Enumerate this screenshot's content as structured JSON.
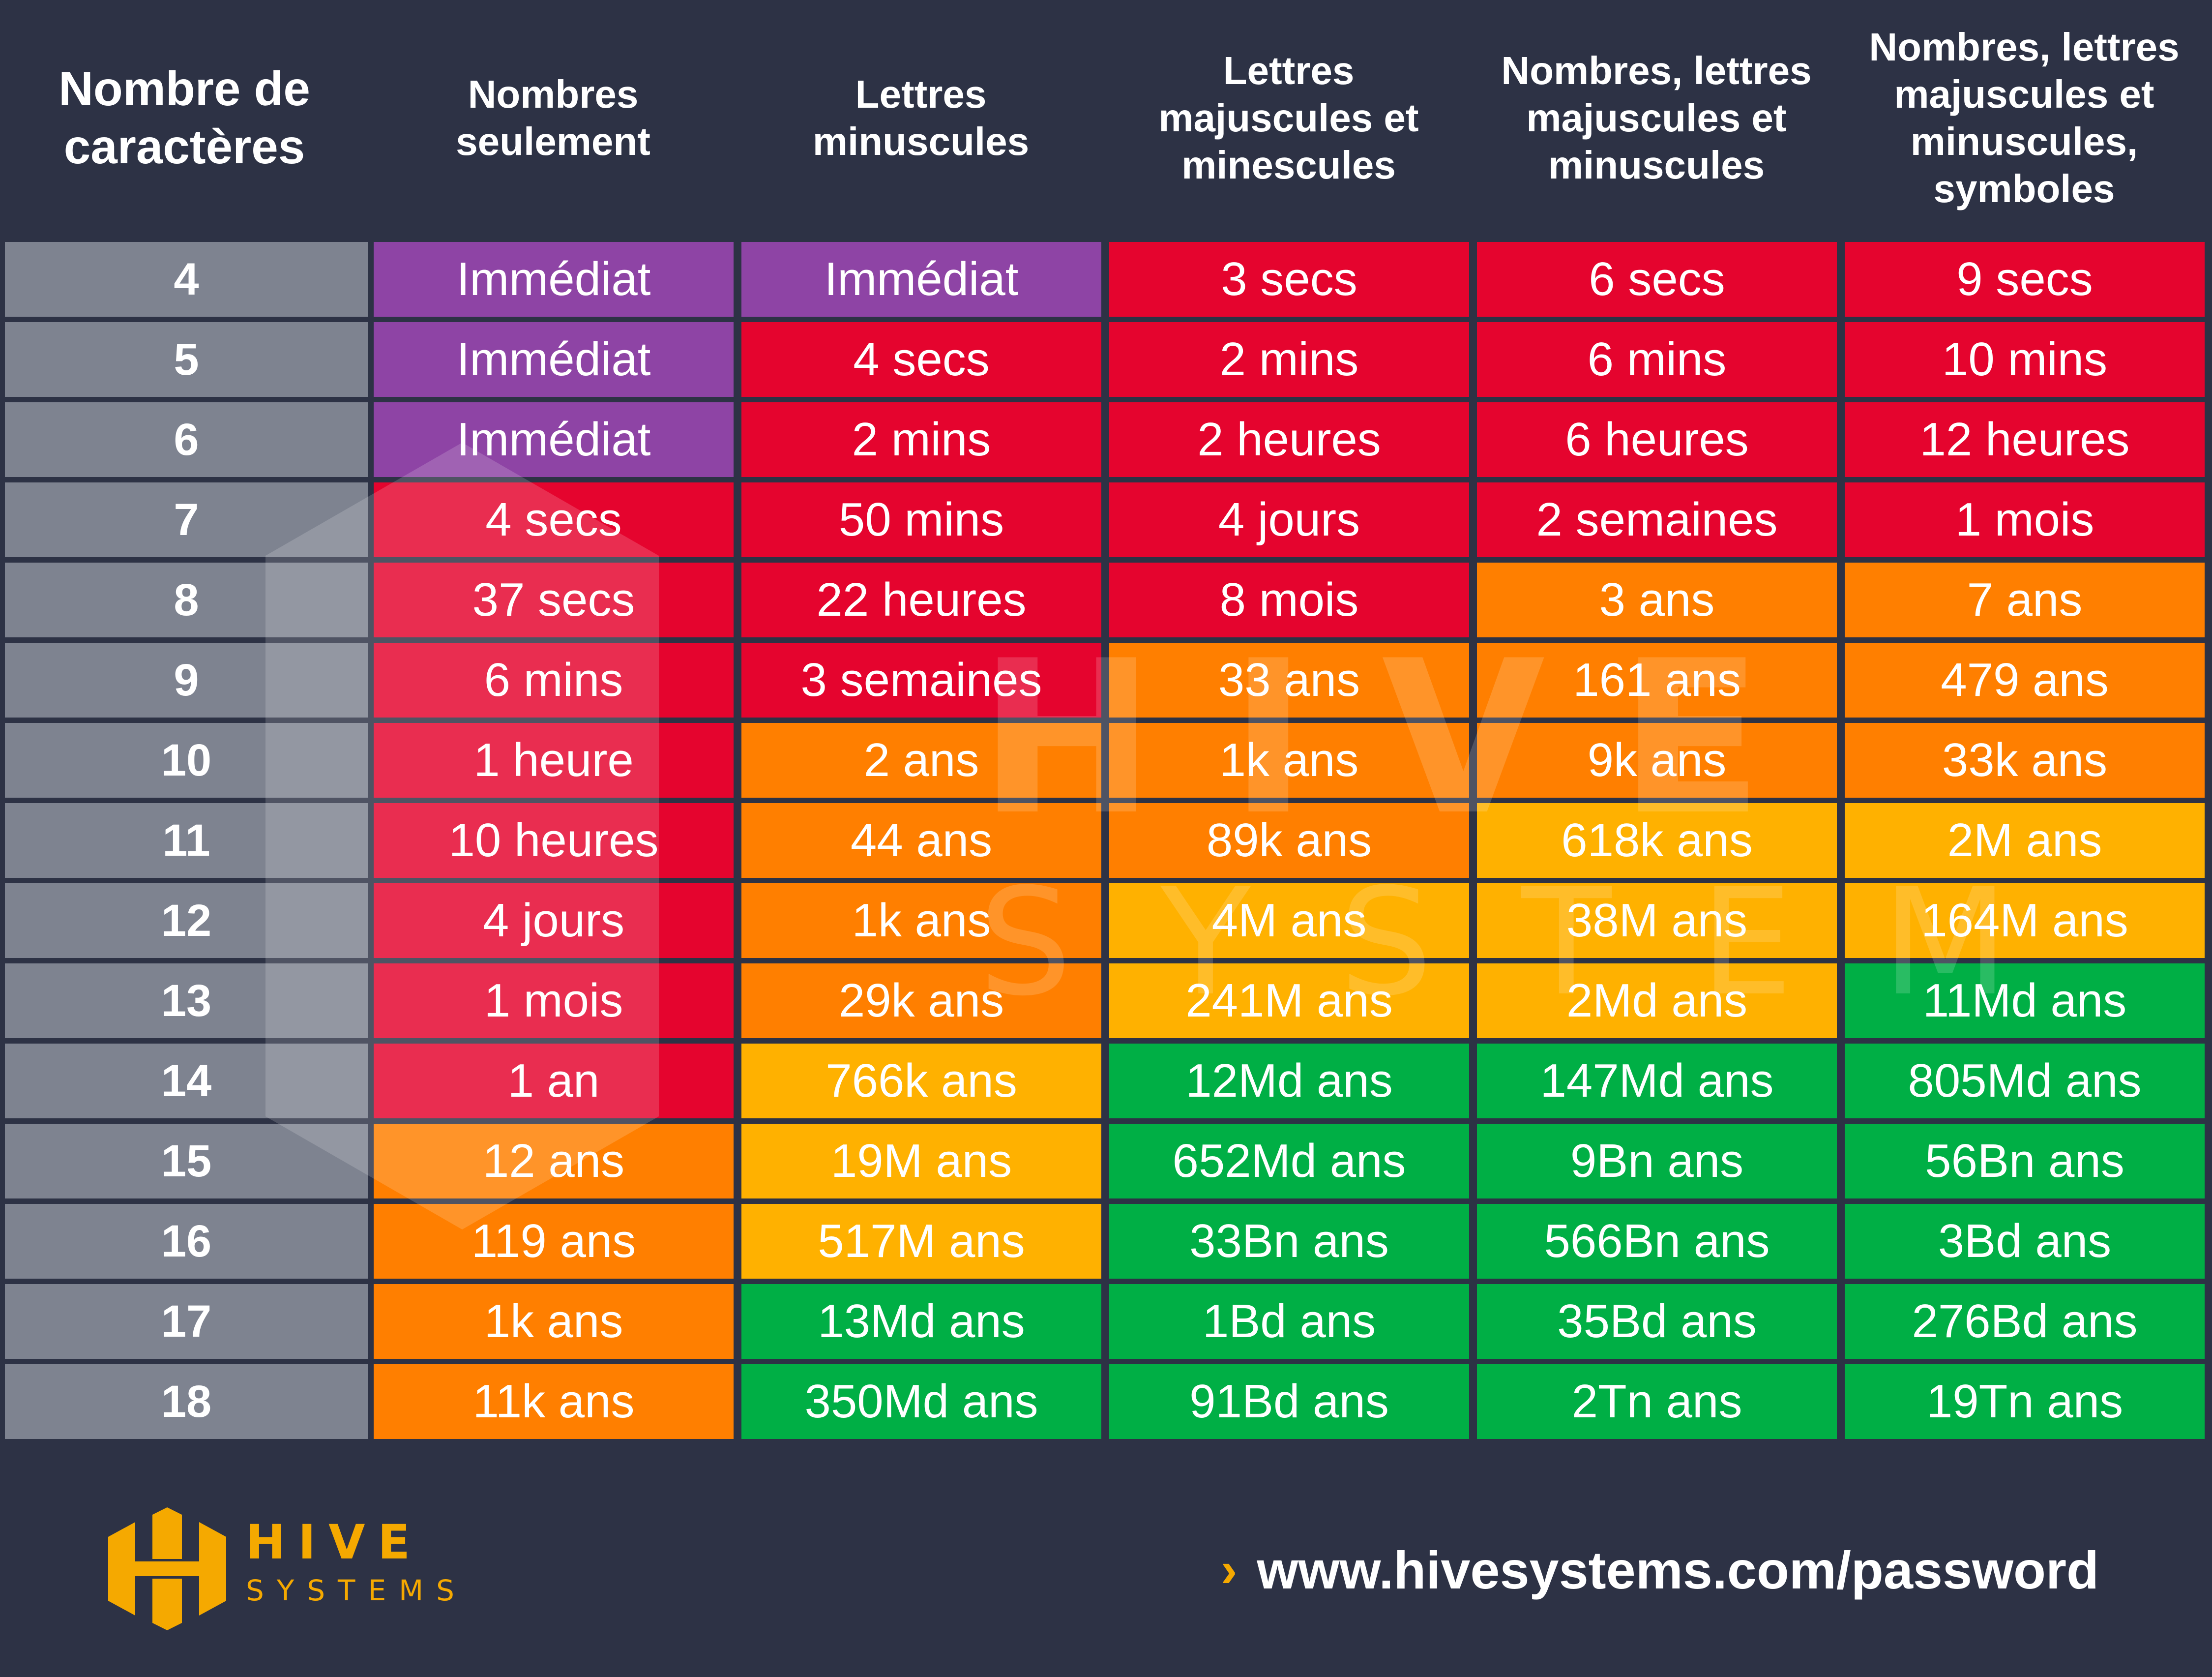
{
  "header": {
    "first": "Nombre de\ncaractères",
    "columns": [
      "Nombres\nseulement",
      "Lettres\nminuscules",
      "Lettres\nmajuscules et\nminescules",
      "Nombres, lettres\nmajuscules et\nminuscules",
      "Nombres, lettres\nmajuscules et\nminuscules,\nsymboles"
    ]
  },
  "colors": {
    "purple": "#8e44a5",
    "red": "#e5042e",
    "orange": "#ff7f00",
    "yellow": "#ffb100",
    "green": "#00af45",
    "label": "#7e8390",
    "background": "#2d3245",
    "brand": "#f5a900"
  },
  "rows": [
    {
      "label": "4",
      "cells": [
        [
          "Immédiat",
          "purple"
        ],
        [
          "Immédiat",
          "purple"
        ],
        [
          "3 secs",
          "red"
        ],
        [
          "6 secs",
          "red"
        ],
        [
          "9 secs",
          "red"
        ]
      ]
    },
    {
      "label": "5",
      "cells": [
        [
          "Immédiat",
          "purple"
        ],
        [
          "4 secs",
          "red"
        ],
        [
          "2 mins",
          "red"
        ],
        [
          "6 mins",
          "red"
        ],
        [
          "10 mins",
          "red"
        ]
      ]
    },
    {
      "label": "6",
      "cells": [
        [
          "Immédiat",
          "purple"
        ],
        [
          "2 mins",
          "red"
        ],
        [
          "2 heures",
          "red"
        ],
        [
          "6 heures",
          "red"
        ],
        [
          "12 heures",
          "red"
        ]
      ]
    },
    {
      "label": "7",
      "cells": [
        [
          "4 secs",
          "red"
        ],
        [
          "50 mins",
          "red"
        ],
        [
          "4 jours",
          "red"
        ],
        [
          "2 semaines",
          "red"
        ],
        [
          "1 mois",
          "red"
        ]
      ]
    },
    {
      "label": "8",
      "cells": [
        [
          "37 secs",
          "red"
        ],
        [
          "22 heures",
          "red"
        ],
        [
          "8 mois",
          "red"
        ],
        [
          "3 ans",
          "orange"
        ],
        [
          "7 ans",
          "orange"
        ]
      ]
    },
    {
      "label": "9",
      "cells": [
        [
          "6 mins",
          "red"
        ],
        [
          "3 semaines",
          "red"
        ],
        [
          "33 ans",
          "orange"
        ],
        [
          "161 ans",
          "orange"
        ],
        [
          "479 ans",
          "orange"
        ]
      ]
    },
    {
      "label": "10",
      "cells": [
        [
          "1 heure",
          "red"
        ],
        [
          "2 ans",
          "orange"
        ],
        [
          "1k ans",
          "orange"
        ],
        [
          "9k ans",
          "orange"
        ],
        [
          "33k ans",
          "orange"
        ]
      ]
    },
    {
      "label": "11",
      "cells": [
        [
          "10 heures",
          "red"
        ],
        [
          "44 ans",
          "orange"
        ],
        [
          "89k ans",
          "orange"
        ],
        [
          "618k ans",
          "yellow"
        ],
        [
          "2M ans",
          "yellow"
        ]
      ]
    },
    {
      "label": "12",
      "cells": [
        [
          "4 jours",
          "red"
        ],
        [
          "1k ans",
          "orange"
        ],
        [
          "4M ans",
          "yellow"
        ],
        [
          "38M ans",
          "yellow"
        ],
        [
          "164M ans",
          "yellow"
        ]
      ]
    },
    {
      "label": "13",
      "cells": [
        [
          "1 mois",
          "red"
        ],
        [
          "29k ans",
          "orange"
        ],
        [
          "241M ans",
          "yellow"
        ],
        [
          "2Md ans",
          "yellow"
        ],
        [
          "11Md ans",
          "green"
        ]
      ]
    },
    {
      "label": "14",
      "cells": [
        [
          "1 an",
          "red"
        ],
        [
          "766k ans",
          "yellow"
        ],
        [
          "12Md ans",
          "green"
        ],
        [
          "147Md ans",
          "green"
        ],
        [
          "805Md ans",
          "green"
        ]
      ]
    },
    {
      "label": "15",
      "cells": [
        [
          "12 ans",
          "orange"
        ],
        [
          "19M ans",
          "yellow"
        ],
        [
          "652Md ans",
          "green"
        ],
        [
          "9Bn ans",
          "green"
        ],
        [
          "56Bn ans",
          "green"
        ]
      ]
    },
    {
      "label": "16",
      "cells": [
        [
          "119 ans",
          "orange"
        ],
        [
          "517M ans",
          "yellow"
        ],
        [
          "33Bn ans",
          "green"
        ],
        [
          "566Bn ans",
          "green"
        ],
        [
          "3Bd ans",
          "green"
        ]
      ]
    },
    {
      "label": "17",
      "cells": [
        [
          "1k ans",
          "orange"
        ],
        [
          "13Md ans",
          "green"
        ],
        [
          "1Bd ans",
          "green"
        ],
        [
          "35Bd ans",
          "green"
        ],
        [
          "276Bd ans",
          "green"
        ]
      ]
    },
    {
      "label": "18",
      "cells": [
        [
          "11k ans",
          "orange"
        ],
        [
          "350Md ans",
          "green"
        ],
        [
          "91Bd ans",
          "green"
        ],
        [
          "2Tn ans",
          "green"
        ],
        [
          "19Tn ans",
          "green"
        ]
      ]
    }
  ],
  "watermark": {
    "word1": "HIVE",
    "word2": "SYSTEMS"
  },
  "footer": {
    "logo_word1": "HIVE",
    "logo_word2": "SYSTEMS",
    "url_arrow": "›",
    "url": "www.hivesystems.com/password"
  }
}
